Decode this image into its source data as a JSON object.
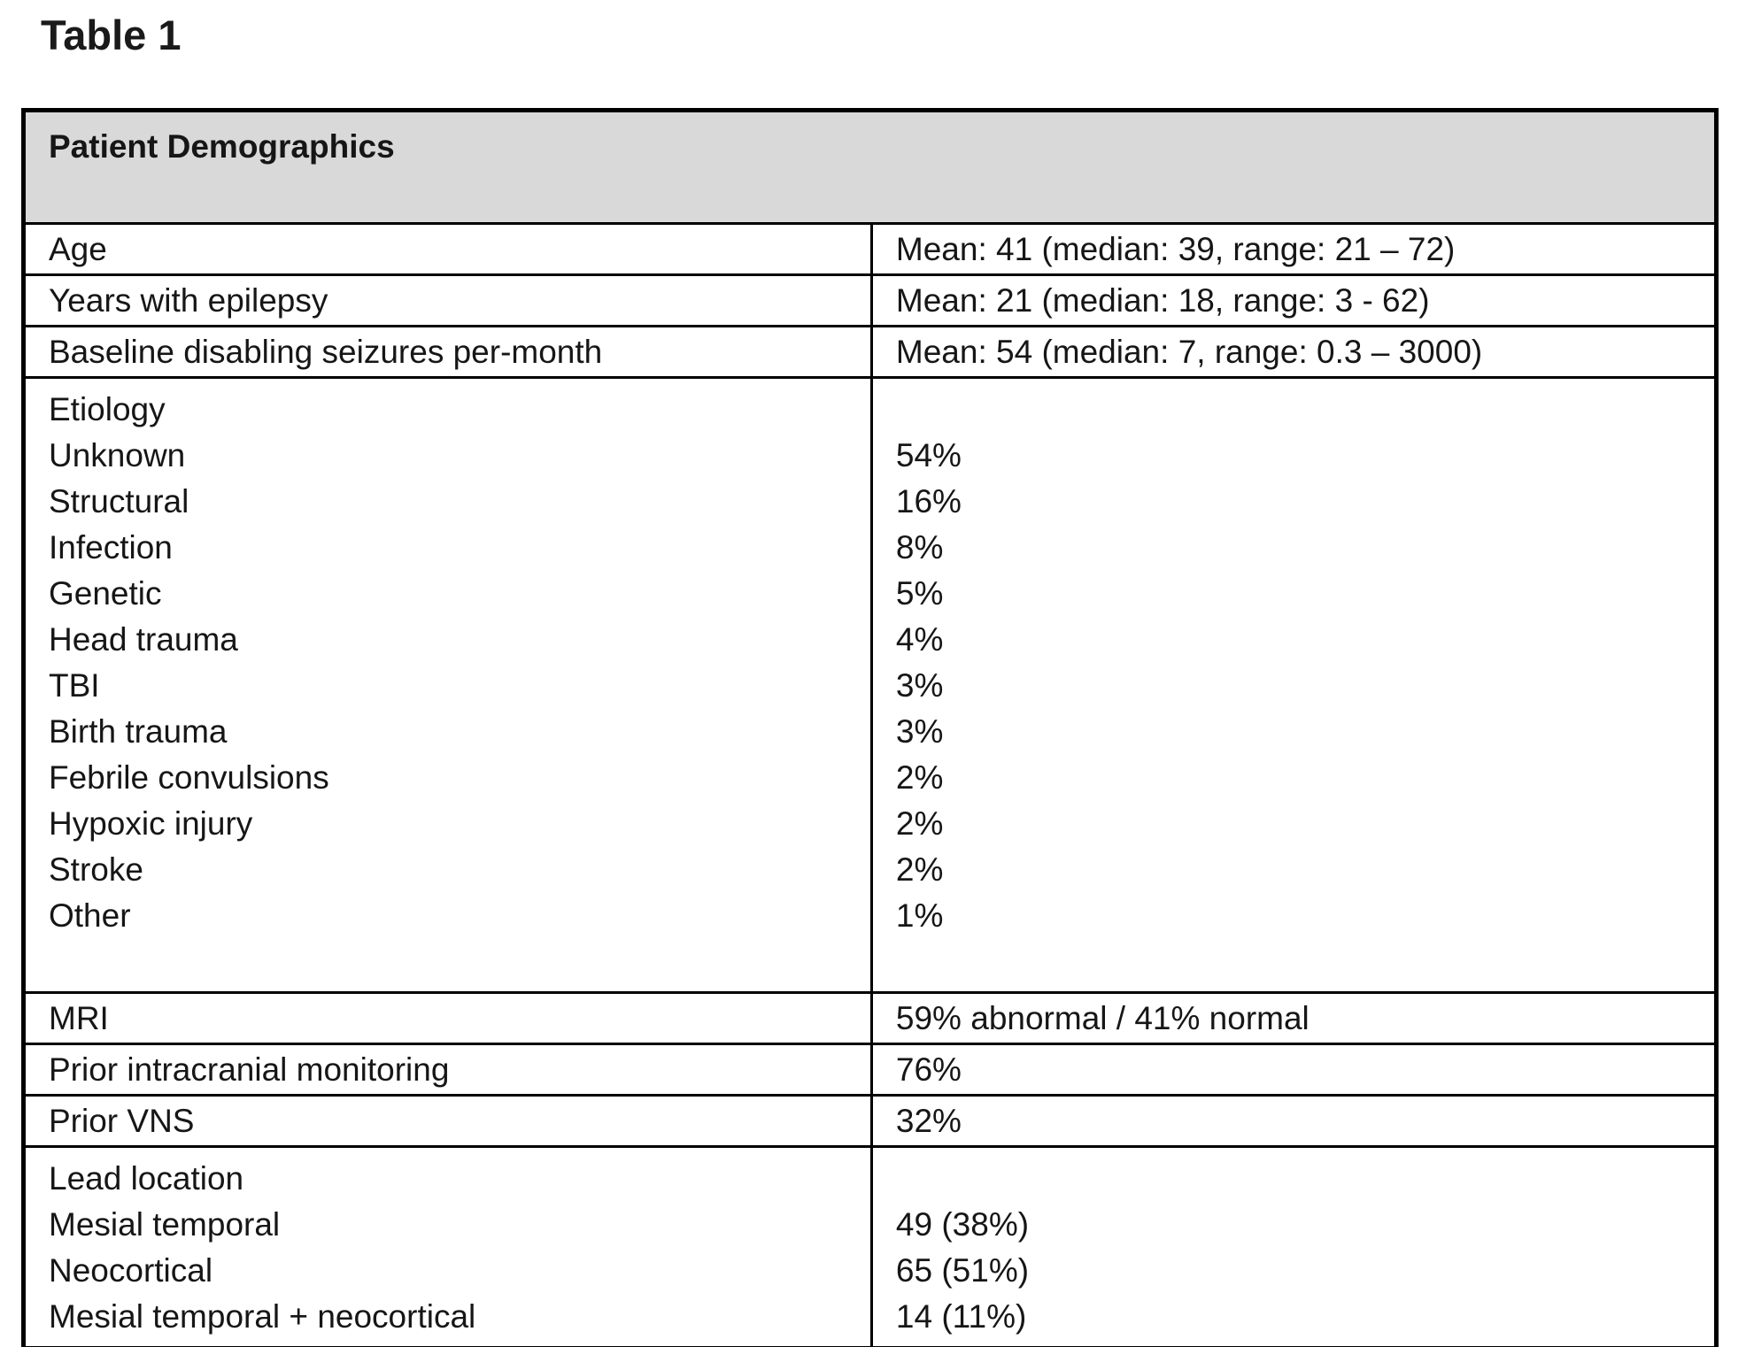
{
  "title": "Table 1",
  "table": {
    "header": "Patient Demographics",
    "rows": [
      {
        "label": "Age",
        "value": "Mean: 41 (median: 39, range: 21 – 72)"
      },
      {
        "label": "Years with epilepsy",
        "value": "Mean: 21 (median: 18, range: 3 - 62)"
      },
      {
        "label": "Baseline disabling seizures per-month",
        "value": "Mean: 54 (median: 7, range: 0.3 – 3000)"
      },
      {
        "lines": [
          {
            "label": "Etiology",
            "value": ""
          },
          {
            "label": "Unknown",
            "value": "54%"
          },
          {
            "label": "Structural",
            "value": "16%"
          },
          {
            "label": "Infection",
            "value": "8%"
          },
          {
            "label": "Genetic",
            "value": "5%"
          },
          {
            "label": "Head trauma",
            "value": "4%"
          },
          {
            "label": "TBI",
            "value": "3%"
          },
          {
            "label": "Birth trauma",
            "value": "3%"
          },
          {
            "label": "Febrile convulsions",
            "value": "2%"
          },
          {
            "label": "Hypoxic injury",
            "value": "2%"
          },
          {
            "label": "Stroke",
            "value": "2%"
          },
          {
            "label": "Other",
            "value": "1%"
          },
          {
            "label": "",
            "value": ""
          }
        ]
      },
      {
        "label": "MRI",
        "value": "59% abnormal / 41% normal"
      },
      {
        "label": "Prior intracranial monitoring",
        "value": "76%"
      },
      {
        "label": "Prior VNS",
        "value": "32%"
      },
      {
        "lines": [
          {
            "label": "Lead location",
            "value": ""
          },
          {
            "label": "Mesial temporal",
            "value": "49 (38%)"
          },
          {
            "label": "Neocortical",
            "value": "65 (51%)"
          },
          {
            "label": "Mesial temporal + neocortical",
            "value": "14 (11%)"
          }
        ]
      }
    ]
  }
}
